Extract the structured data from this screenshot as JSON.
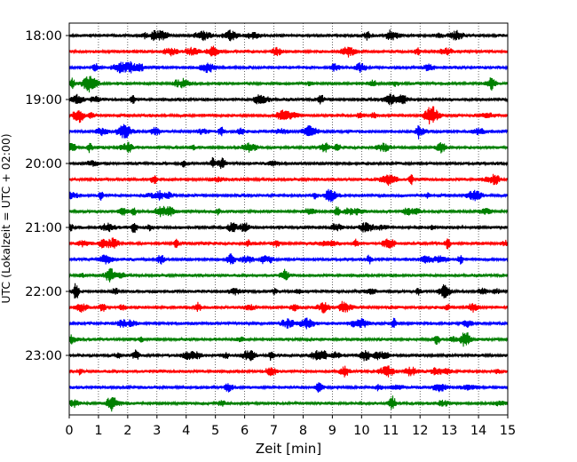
{
  "chart_data": {
    "type": "line",
    "title": "",
    "xlabel": "Zeit  [min]",
    "ylabel": "UTC (Lokalzeit = UTC + 02:00)",
    "xlim": [
      0,
      15
    ],
    "x_ticks": [
      "0",
      "1",
      "2",
      "3",
      "4",
      "5",
      "6",
      "7",
      "8",
      "9",
      "10",
      "11",
      "12",
      "13",
      "14",
      "15"
    ],
    "y_ticks": [
      "18:00",
      "19:00",
      "20:00",
      "21:00",
      "22:00",
      "23:00"
    ],
    "grid": "x dotted",
    "trace_interval_min": 15,
    "rows_start": "18:00",
    "row_count": 24,
    "row_colors": [
      "#000000",
      "#ff0000",
      "#0000ff",
      "#008000"
    ],
    "series_description": "Seismogram helicorder: one 15-minute trace per row, rows every 15 min from 18:00 to 23:45, colors cycle black, red, blue, green"
  }
}
